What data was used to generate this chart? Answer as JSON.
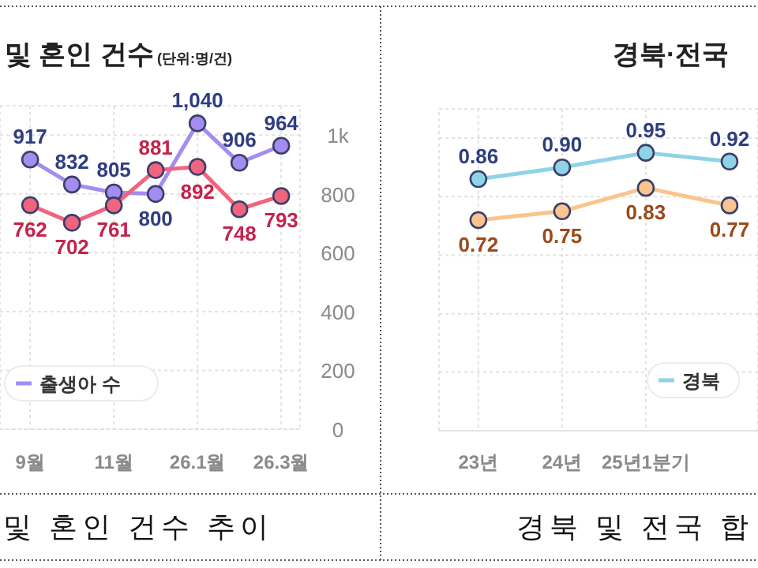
{
  "chart_data": [
    {
      "type": "line",
      "title": "및 혼인 건수",
      "subtitle": "(단위:명/건)",
      "categories": [
        "9월",
        null,
        "11월",
        null,
        "26.1월",
        null,
        "26.3월"
      ],
      "series": [
        {
          "name": "출생아 수",
          "color": "#a48cf0",
          "values": [
            917,
            832,
            805,
            800,
            1040,
            906,
            964
          ],
          "value_labels": [
            "917",
            "832",
            "805",
            "800",
            "1,040",
            "906",
            "964"
          ]
        },
        {
          "color": "#f0647e",
          "values": [
            762,
            702,
            761,
            881,
            892,
            748,
            793
          ],
          "value_labels": [
            "762",
            "702",
            "761",
            "881",
            "892",
            "748",
            "793"
          ]
        }
      ],
      "ylim": [
        0,
        1100
      ],
      "yticks": [
        0,
        200,
        400,
        600,
        800,
        {
          "value": 1000,
          "label": "1k"
        }
      ],
      "grid": true,
      "legend": "bottom left",
      "marker": "circle",
      "line_style": "solid",
      "annotations": [
        "및 혼인 건수 추이"
      ]
    },
    {
      "type": "line",
      "title": "경북·전국",
      "categories": [
        "23년",
        "24년",
        "25년1분기",
        null
      ],
      "series": [
        {
          "name": "경북",
          "color": "#8fd3e6",
          "values": [
            0.86,
            0.9,
            0.95,
            0.92
          ],
          "value_labels": [
            "0.86",
            "0.90",
            "0.95",
            "0.92"
          ]
        },
        {
          "color": "#f9c48e",
          "values": [
            0.72,
            0.75,
            0.83,
            0.77
          ],
          "value_labels": [
            "0.72",
            "0.75",
            "0.83",
            "0.77"
          ]
        }
      ],
      "ylim": [
        0,
        1.1
      ],
      "yticks": [
        {
          "value": 0,
          "label": null
        },
        {
          "value": 0.2,
          "label": null
        },
        {
          "value": 0.4,
          "label": null
        },
        {
          "value": 0.6,
          "label": null
        },
        {
          "value": 0.8,
          "label": null
        },
        {
          "value": 1.0,
          "label": null
        }
      ],
      "tick_labels": "x",
      "grid": true,
      "legend": "bottom right",
      "marker": "circle",
      "line_style": "solid",
      "annotations": [
        "경북 및 전국 합"
      ]
    }
  ]
}
